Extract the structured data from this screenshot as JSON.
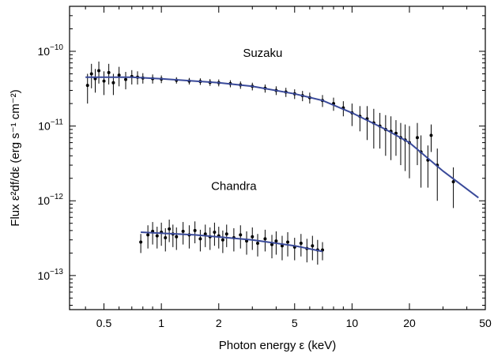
{
  "chart_data": {
    "type": "scatter",
    "xlabel": "Photon energy ε (keV)",
    "ylabel": "Flux ε²df/dε (erg s⁻¹ cm⁻²)",
    "xscale": "log",
    "yscale": "log",
    "xlim": [
      0.33,
      50
    ],
    "ylim": [
      3.5e-14,
      4e-10
    ],
    "x_ticks": [
      0.5,
      1,
      2,
      5,
      10,
      20,
      50
    ],
    "x_tick_labels": [
      "0.5",
      "1",
      "2",
      "5",
      "10",
      "20",
      "50"
    ],
    "y_ticks": [
      1e-13,
      1e-12,
      1e-11,
      1e-10
    ],
    "y_tick_labels": [
      {
        "base": "10",
        "exp": "−13"
      },
      {
        "base": "10",
        "exp": "−12"
      },
      {
        "base": "10",
        "exp": "−11"
      },
      {
        "base": "10",
        "exp": "−10"
      }
    ],
    "annotations": [
      {
        "text": "Suzaku",
        "x": 3.4,
        "y": 8.4e-11
      },
      {
        "text": "Chandra",
        "x": 2.4,
        "y": 1.4e-12
      }
    ],
    "model_color": "#3a4a9a",
    "series": [
      {
        "name": "Suzaku",
        "model": [
          [
            0.4,
            4.5e-11
          ],
          [
            0.7,
            4.5e-11
          ],
          [
            1.0,
            4.3e-11
          ],
          [
            2.0,
            3.8e-11
          ],
          [
            3.0,
            3.4e-11
          ],
          [
            5.0,
            2.7e-11
          ],
          [
            7.0,
            2.2e-11
          ],
          [
            10.0,
            1.5e-11
          ],
          [
            15.0,
            9e-12
          ],
          [
            20.0,
            6e-12
          ],
          [
            30.0,
            2.5e-12
          ],
          [
            46.0,
            1.1e-12
          ]
        ],
        "points": [
          [
            0.41,
            3.5e-11,
            1.5e-11
          ],
          [
            0.43,
            5e-11,
            1.8e-11
          ],
          [
            0.45,
            4.3e-11,
            1.5e-11
          ],
          [
            0.47,
            5.5e-11,
            1.8e-11
          ],
          [
            0.5,
            4e-11,
            1.4e-11
          ],
          [
            0.53,
            5.2e-11,
            1.6e-11
          ],
          [
            0.56,
            3.8e-11,
            1.2e-11
          ],
          [
            0.6,
            4.8e-11,
            1.4e-11
          ],
          [
            0.65,
            4.2e-11,
            1.1e-11
          ],
          [
            0.7,
            4.6e-11,
            1e-11
          ],
          [
            0.75,
            4.5e-11,
            9e-12
          ],
          [
            0.8,
            4.4e-11,
            7e-12
          ],
          [
            0.9,
            4.3e-11,
            6e-12
          ],
          [
            1.0,
            4.25e-11,
            5e-12
          ],
          [
            1.2,
            4.1e-11,
            4e-12
          ],
          [
            1.4,
            4e-11,
            4e-12
          ],
          [
            1.6,
            3.95e-11,
            4e-12
          ],
          [
            1.8,
            3.85e-11,
            4e-12
          ],
          [
            2.0,
            3.8e-11,
            4e-12
          ],
          [
            2.3,
            3.7e-11,
            4e-12
          ],
          [
            2.6,
            3.55e-11,
            4e-12
          ],
          [
            3.0,
            3.4e-11,
            4e-12
          ],
          [
            3.5,
            3.2e-11,
            4e-12
          ],
          [
            4.0,
            3e-11,
            4e-12
          ],
          [
            4.5,
            2.85e-11,
            4e-12
          ],
          [
            5.0,
            2.7e-11,
            4e-12
          ],
          [
            5.5,
            2.55e-11,
            4e-12
          ],
          [
            6.0,
            2.4e-11,
            4e-12
          ],
          [
            7.0,
            2.2e-11,
            4e-12
          ],
          [
            8.0,
            2e-11,
            4e-12
          ],
          [
            9.0,
            1.75e-11,
            4e-12
          ],
          [
            10.0,
            1.5e-11,
            5e-12
          ],
          [
            11.0,
            1.35e-11,
            5e-12
          ],
          [
            12.0,
            1.25e-11,
            6e-12
          ],
          [
            13.0,
            1.1e-11,
            6e-12
          ],
          [
            14.0,
            1e-11,
            5e-12
          ],
          [
            15.0,
            9e-12,
            5e-12
          ],
          [
            16.0,
            8.5e-12,
            5e-12
          ],
          [
            17.0,
            8e-12,
            4e-12
          ],
          [
            18.0,
            7e-12,
            4e-12
          ],
          [
            19.0,
            6.5e-12,
            4e-12
          ],
          [
            20.0,
            6e-12,
            4e-12
          ],
          [
            22.0,
            7e-12,
            4e-12
          ],
          [
            23.0,
            4.5e-12,
            3e-12
          ],
          [
            25.0,
            3.5e-12,
            2e-12
          ],
          [
            26.0,
            7.5e-12,
            3e-12
          ],
          [
            28.0,
            3e-12,
            2e-12
          ],
          [
            34.0,
            1.8e-12,
            1e-12
          ]
        ]
      },
      {
        "name": "Chandra",
        "model": [
          [
            0.78,
            3.8e-13
          ],
          [
            1.5,
            3.5e-13
          ],
          [
            3.0,
            3e-13
          ],
          [
            5.0,
            2.5e-13
          ],
          [
            7.0,
            2.1e-13
          ]
        ],
        "points": [
          [
            0.78,
            2.8e-13,
            8e-14
          ],
          [
            0.85,
            3.5e-13,
            1.2e-13
          ],
          [
            0.9,
            3.9e-13,
            1.3e-13
          ],
          [
            0.95,
            3.4e-13,
            1.1e-13
          ],
          [
            1.0,
            3.8e-13,
            1.3e-13
          ],
          [
            1.05,
            3.2e-13,
            1.1e-13
          ],
          [
            1.1,
            4.2e-13,
            1.4e-13
          ],
          [
            1.15,
            3.6e-13,
            1.2e-13
          ],
          [
            1.2,
            3.3e-13,
            1.1e-13
          ],
          [
            1.3,
            3.9e-13,
            1.3e-13
          ],
          [
            1.4,
            3.5e-13,
            1.2e-13
          ],
          [
            1.5,
            4e-13,
            1.3e-13
          ],
          [
            1.6,
            3.1e-13,
            1e-13
          ],
          [
            1.7,
            3.6e-13,
            1.2e-13
          ],
          [
            1.8,
            3.3e-13,
            1.1e-13
          ],
          [
            1.9,
            3.8e-13,
            1.3e-13
          ],
          [
            2.0,
            3.4e-13,
            1.1e-13
          ],
          [
            2.1,
            3e-13,
            1e-13
          ],
          [
            2.2,
            3.6e-13,
            1.2e-13
          ],
          [
            2.4,
            3.2e-13,
            1.1e-13
          ],
          [
            2.6,
            3.5e-13,
            1.2e-13
          ],
          [
            2.8,
            2.9e-13,
            1e-13
          ],
          [
            3.0,
            3.3e-13,
            1.1e-13
          ],
          [
            3.2,
            2.7e-13,
            9e-14
          ],
          [
            3.5,
            3.1e-13,
            1e-13
          ],
          [
            3.8,
            2.6e-13,
            9e-14
          ],
          [
            4.0,
            2.9e-13,
            1e-13
          ],
          [
            4.3,
            2.5e-13,
            9e-14
          ],
          [
            4.6,
            2.8e-13,
            1e-13
          ],
          [
            5.0,
            2.4e-13,
            8e-14
          ],
          [
            5.4,
            2.7e-13,
            9e-14
          ],
          [
            5.8,
            2.3e-13,
            8e-14
          ],
          [
            6.2,
            2.5e-13,
            9e-14
          ],
          [
            6.6,
            2.2e-13,
            8e-14
          ],
          [
            7.0,
            2.2e-13,
            6e-14
          ]
        ]
      }
    ]
  }
}
